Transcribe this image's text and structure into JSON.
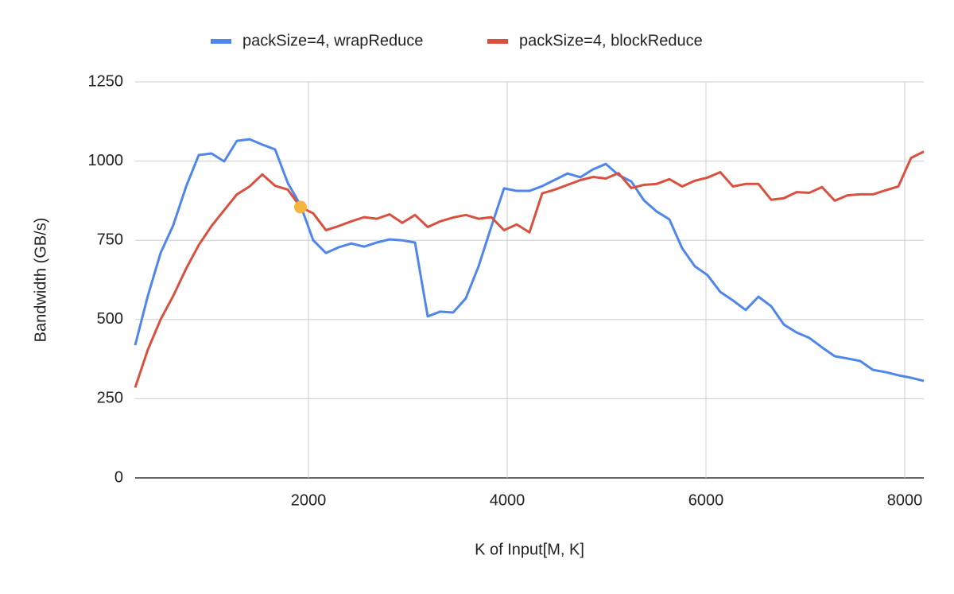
{
  "chart_data": {
    "type": "line",
    "x_label": "K of Input[M, K]",
    "y_label": "Bandwidth (GB/s)",
    "x": [
      256,
      384,
      512,
      640,
      768,
      896,
      1024,
      1152,
      1280,
      1408,
      1536,
      1664,
      1792,
      1920,
      2048,
      2176,
      2304,
      2432,
      2560,
      2688,
      2816,
      2944,
      3072,
      3200,
      3328,
      3456,
      3584,
      3712,
      3840,
      3968,
      4096,
      4224,
      4352,
      4480,
      4608,
      4736,
      4864,
      4992,
      5120,
      5248,
      5376,
      5504,
      5632,
      5760,
      5888,
      6016,
      6144,
      6272,
      6400,
      6528,
      6656,
      6784,
      6912,
      7040,
      7168,
      7296,
      7424,
      7552,
      7680,
      7808,
      7936,
      8064,
      8192
    ],
    "series": [
      {
        "name": "packSize=4, wrapReduce",
        "color": "#4f86ec",
        "values": [
          419,
          575,
          710,
          798,
          919,
          1019,
          1024,
          999,
          1064,
          1069,
          1052,
          1037,
          931,
          861,
          750,
          710,
          728,
          740,
          730,
          743,
          753,
          750,
          743,
          510,
          525,
          522,
          567,
          668,
          793,
          914,
          906,
          906,
          921,
          941,
          961,
          949,
          974,
          991,
          956,
          936,
          876,
          841,
          816,
          725,
          668,
          640,
          587,
          560,
          530,
          572,
          542,
          484,
          459,
          442,
          412,
          384,
          377,
          369,
          341,
          334,
          324,
          316,
          306
        ]
      },
      {
        "name": "packSize=4, blockReduce",
        "color": "#d9503f",
        "values": [
          285,
          405,
          500,
          575,
          660,
          735,
          795,
          845,
          895,
          920,
          958,
          922,
          910,
          855,
          835,
          782,
          795,
          810,
          823,
          818,
          832,
          805,
          830,
          792,
          810,
          822,
          830,
          818,
          823,
          782,
          800,
          775,
          898,
          910,
          925,
          940,
          950,
          945,
          962,
          915,
          925,
          928,
          943,
          920,
          938,
          948,
          965,
          920,
          928,
          928,
          878,
          883,
          902,
          900,
          918,
          875,
          892,
          895,
          895,
          908,
          920,
          1010,
          1030
        ]
      }
    ],
    "highlight": {
      "x": 1920,
      "y": 855,
      "color": "#f4b63f"
    },
    "xlim": [
      256,
      8192
    ],
    "xticks": [
      2000,
      4000,
      6000,
      8000
    ],
    "ylim": [
      0,
      1250
    ],
    "yticks": [
      0,
      250,
      500,
      750,
      1000,
      1250
    ],
    "grid": true,
    "legend": "top"
  }
}
